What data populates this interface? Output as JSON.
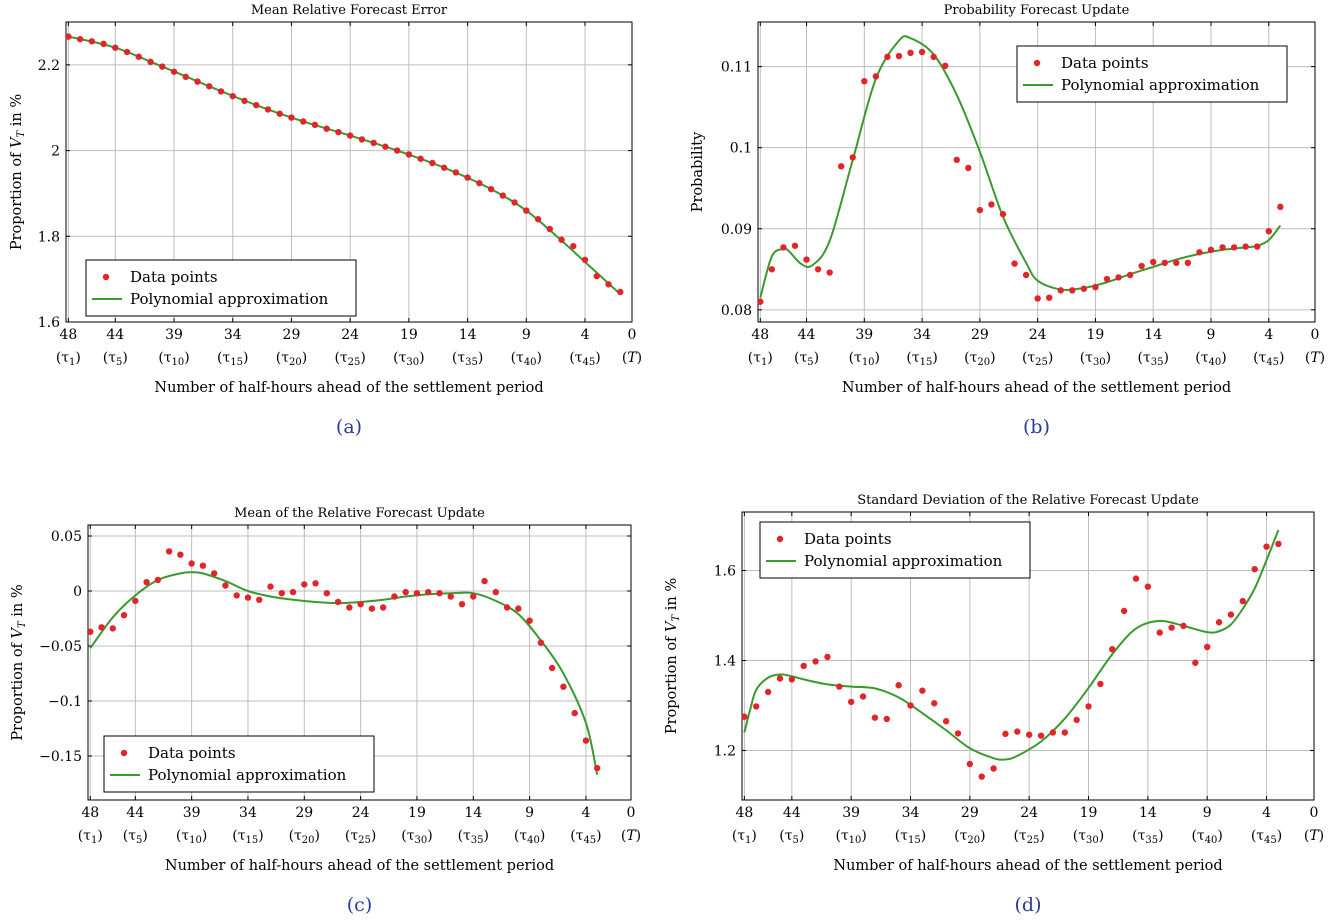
{
  "figure": {
    "x_label": "Number of half-hours ahead of the settlement period",
    "x_ticks": [
      48,
      44,
      39,
      34,
      29,
      24,
      19,
      14,
      9,
      4,
      0
    ],
    "x_tick_sublabels": [
      "(τ1)",
      "(τ5)",
      "(τ10)",
      "(τ15)",
      "(τ20)",
      "(τ25)",
      "(τ30)",
      "(τ35)",
      "(τ40)",
      "(τ45)",
      "(T)"
    ],
    "colors": {
      "points": "#e0262a",
      "curve": "#3a9a2e",
      "caption": "#2b3a9a"
    }
  },
  "chart_data": [
    {
      "id": "a",
      "type": "scatter",
      "caption": "(a)",
      "title": "Mean Relative Forecast Error",
      "xlabel": "Number of half-hours ahead of the settlement period",
      "ylabel": "Proportion of V_T in %",
      "xlim": [
        48.2,
        0
      ],
      "ylim": [
        1.6,
        2.3
      ],
      "yticks": [
        1.6,
        1.8,
        2.0,
        2.2
      ],
      "ytick_labels": [
        "1.6",
        "1.8",
        "2",
        "2.2"
      ],
      "legend_position": "bottom-left",
      "series": [
        {
          "name": "Data points",
          "x": [
            48,
            47,
            46,
            45,
            44,
            43,
            42,
            41,
            40,
            39,
            38,
            37,
            36,
            35,
            34,
            33,
            32,
            31,
            30,
            29,
            28,
            27,
            26,
            25,
            24,
            23,
            22,
            21,
            20,
            19,
            18,
            17,
            16,
            15,
            14,
            13,
            12,
            11,
            10,
            9,
            8,
            7,
            6,
            5,
            4,
            3,
            2,
            1
          ],
          "y": [
            2.266,
            2.26,
            2.255,
            2.249,
            2.24,
            2.23,
            2.219,
            2.207,
            2.196,
            2.184,
            2.172,
            2.161,
            2.15,
            2.138,
            2.127,
            2.116,
            2.106,
            2.096,
            2.086,
            2.077,
            2.068,
            2.06,
            2.051,
            2.043,
            2.035,
            2.026,
            2.018,
            2.009,
            2.0,
            1.991,
            1.981,
            1.971,
            1.96,
            1.949,
            1.937,
            1.924,
            1.91,
            1.895,
            1.879,
            1.86,
            1.84,
            1.817,
            1.792,
            1.777,
            1.745,
            1.707,
            1.688,
            1.67
          ]
        },
        {
          "name": "Polynomial approximation",
          "x": [
            48,
            44,
            40,
            36,
            32,
            28,
            24,
            20,
            16,
            12,
            9,
            6,
            4,
            2,
            1
          ],
          "y": [
            2.266,
            2.24,
            2.196,
            2.15,
            2.106,
            2.068,
            2.035,
            2.0,
            1.96,
            1.91,
            1.86,
            1.79,
            1.74,
            1.69,
            1.665
          ]
        }
      ]
    },
    {
      "id": "b",
      "type": "scatter",
      "caption": "(b)",
      "title": "Probability Forecast Update",
      "xlabel": "Number of half-hours ahead of the settlement period",
      "ylabel": "Probability",
      "xlim": [
        48.2,
        0
      ],
      "ylim": [
        0.0785,
        0.1155
      ],
      "yticks": [
        0.08,
        0.09,
        0.1,
        0.11
      ],
      "ytick_labels": [
        "0.08",
        "0.09",
        "0.1",
        "0.11"
      ],
      "legend_position": "top-right",
      "series": [
        {
          "name": "Data points",
          "x": [
            48,
            47,
            46,
            45,
            44,
            43,
            42,
            41,
            40,
            39,
            38,
            37,
            36,
            35,
            34,
            33,
            32,
            31,
            30,
            29,
            28,
            27,
            26,
            25,
            24,
            23,
            22,
            21,
            20,
            19,
            18,
            17,
            16,
            15,
            14,
            13,
            12,
            11,
            10,
            9,
            8,
            7,
            6,
            5,
            4,
            3
          ],
          "y": [
            0.081,
            0.085,
            0.0877,
            0.0879,
            0.0862,
            0.085,
            0.0846,
            0.0977,
            0.0988,
            0.1082,
            0.1088,
            0.1112,
            0.1113,
            0.1117,
            0.1118,
            0.1112,
            0.1101,
            0.0985,
            0.0975,
            0.0923,
            0.093,
            0.0918,
            0.0857,
            0.0843,
            0.0814,
            0.0815,
            0.0824,
            0.0824,
            0.0826,
            0.0828,
            0.0838,
            0.084,
            0.0843,
            0.0854,
            0.0859,
            0.0858,
            0.0858,
            0.0858,
            0.0871,
            0.0874,
            0.0877,
            0.0877,
            0.0878,
            0.0878,
            0.0897,
            0.0927
          ]
        },
        {
          "name": "Polynomial approximation",
          "x": [
            48,
            47,
            46,
            45.5,
            44.5,
            43.5,
            42,
            40,
            38,
            36,
            35,
            33,
            31,
            29,
            27,
            25,
            24,
            22,
            20,
            18,
            16,
            14,
            12,
            10,
            8,
            6,
            5,
            4,
            3
          ],
          "y": [
            0.0815,
            0.0866,
            0.0875,
            0.0872,
            0.0857,
            0.0855,
            0.0885,
            0.0985,
            0.1085,
            0.1132,
            0.1135,
            0.1115,
            0.1065,
            0.0995,
            0.0915,
            0.0858,
            0.0836,
            0.0825,
            0.0827,
            0.0834,
            0.0844,
            0.0853,
            0.0862,
            0.0869,
            0.0874,
            0.0877,
            0.0879,
            0.0886,
            0.0904
          ]
        }
      ]
    },
    {
      "id": "c",
      "type": "scatter",
      "caption": "(c)",
      "title": "Mean of the Relative Forecast Update",
      "xlabel": "Number of half-hours ahead of the settlement period",
      "ylabel": "Proportion of V_T in %",
      "xlim": [
        48.2,
        0
      ],
      "ylim": [
        -0.19,
        0.06
      ],
      "yticks": [
        -0.15,
        -0.1,
        -0.05,
        0,
        0.05
      ],
      "ytick_labels": [
        "−0.15",
        "−0.1",
        "−0.05",
        "0",
        "0.05"
      ],
      "legend_position": "bottom-left",
      "series": [
        {
          "name": "Data points",
          "x": [
            48,
            47,
            46,
            45,
            44,
            43,
            42,
            41,
            40,
            39,
            38,
            37,
            36,
            35,
            34,
            33,
            32,
            31,
            30,
            29,
            28,
            27,
            26,
            25,
            24,
            23,
            22,
            21,
            20,
            19,
            18,
            17,
            16,
            15,
            14,
            13,
            12,
            11,
            10,
            9,
            8,
            7,
            6,
            5,
            4,
            3
          ],
          "y": [
            -0.037,
            -0.033,
            -0.034,
            -0.022,
            -0.009,
            0.008,
            0.01,
            0.036,
            0.033,
            0.025,
            0.023,
            0.016,
            0.005,
            -0.004,
            -0.006,
            -0.008,
            0.004,
            -0.002,
            -0.001,
            0.006,
            0.007,
            -0.002,
            -0.01,
            -0.015,
            -0.012,
            -0.016,
            -0.015,
            -0.005,
            -0.001,
            -0.002,
            -0.001,
            -0.002,
            -0.005,
            -0.012,
            -0.005,
            0.009,
            -0.001,
            -0.015,
            -0.016,
            -0.027,
            -0.047,
            -0.07,
            -0.087,
            -0.111,
            -0.136,
            -0.161
          ]
        },
        {
          "name": "Polynomial approximation",
          "x": [
            48,
            46,
            44,
            42,
            40,
            39,
            38,
            36,
            34,
            32,
            30,
            28,
            26,
            24,
            22,
            20,
            18,
            16,
            14,
            12,
            10,
            8,
            6,
            4,
            3
          ],
          "y": [
            -0.052,
            -0.024,
            -0.004,
            0.01,
            0.016,
            0.017,
            0.016,
            0.009,
            0.0,
            -0.005,
            -0.008,
            -0.01,
            -0.011,
            -0.01,
            -0.008,
            -0.005,
            -0.003,
            -0.002,
            -0.002,
            -0.009,
            -0.021,
            -0.045,
            -0.075,
            -0.12,
            -0.167
          ]
        }
      ]
    },
    {
      "id": "d",
      "type": "scatter",
      "caption": "(d)",
      "title": "Standard Deviation of the Relative Forecast Update",
      "xlabel": "Number of half-hours ahead of the settlement period",
      "ylabel": "Proportion of V_T in %",
      "xlim": [
        48.2,
        0
      ],
      "ylim": [
        1.09,
        1.73
      ],
      "yticks": [
        1.2,
        1.4,
        1.6
      ],
      "ytick_labels": [
        "1.2",
        "1.4",
        "1.6"
      ],
      "legend_position": "top-left",
      "series": [
        {
          "name": "Data points",
          "x": [
            48,
            47,
            46,
            45,
            44,
            43,
            42,
            41,
            40,
            39,
            38,
            37,
            36,
            35,
            34,
            33,
            32,
            31,
            30,
            29,
            28,
            27,
            26,
            25,
            24,
            23,
            22,
            21,
            20,
            19,
            18,
            17,
            16,
            15,
            14,
            13,
            12,
            11,
            10,
            9,
            8,
            7,
            6,
            5,
            4,
            3
          ],
          "y": [
            1.275,
            1.298,
            1.33,
            1.36,
            1.358,
            1.388,
            1.398,
            1.408,
            1.342,
            1.308,
            1.32,
            1.273,
            1.27,
            1.345,
            1.3,
            1.333,
            1.305,
            1.265,
            1.238,
            1.17,
            1.142,
            1.16,
            1.237,
            1.242,
            1.235,
            1.233,
            1.24,
            1.24,
            1.268,
            1.298,
            1.348,
            1.425,
            1.51,
            1.582,
            1.564,
            1.462,
            1.473,
            1.477,
            1.395,
            1.43,
            1.485,
            1.502,
            1.532,
            1.603,
            1.653,
            1.659
          ]
        },
        {
          "name": "Polynomial approximation",
          "x": [
            48,
            47.5,
            47,
            46,
            45,
            44,
            43,
            41,
            39,
            37,
            35,
            33,
            31,
            29,
            27,
            26,
            25,
            23,
            21,
            19,
            17,
            15,
            13,
            11,
            9,
            8,
            7,
            6,
            5,
            4,
            3
          ],
          "y": [
            1.24,
            1.292,
            1.335,
            1.362,
            1.369,
            1.365,
            1.358,
            1.347,
            1.342,
            1.338,
            1.318,
            1.283,
            1.245,
            1.205,
            1.183,
            1.18,
            1.188,
            1.22,
            1.271,
            1.339,
            1.414,
            1.471,
            1.488,
            1.477,
            1.463,
            1.465,
            1.48,
            1.515,
            1.56,
            1.623,
            1.69
          ]
        }
      ]
    }
  ]
}
